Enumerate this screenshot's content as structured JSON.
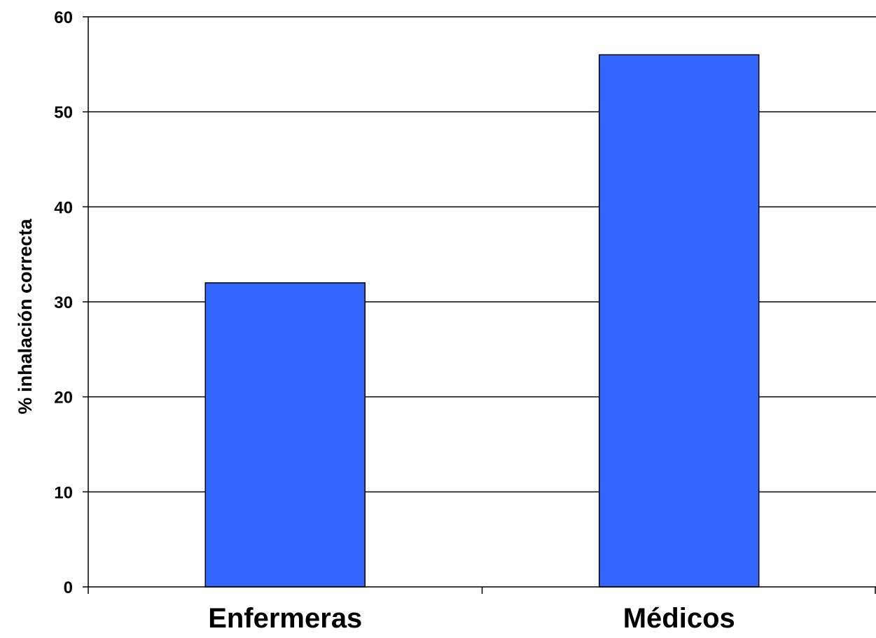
{
  "chart_data": {
    "type": "bar",
    "categories": [
      "Enfermeras",
      "Médicos"
    ],
    "values": [
      32,
      56
    ],
    "ylabel": "% inhalación correcta",
    "ylim": [
      0,
      60
    ],
    "yticks": [
      0,
      10,
      20,
      30,
      40,
      50,
      60
    ],
    "grid": true,
    "legend": "none",
    "bar_color": "#3366FF"
  }
}
